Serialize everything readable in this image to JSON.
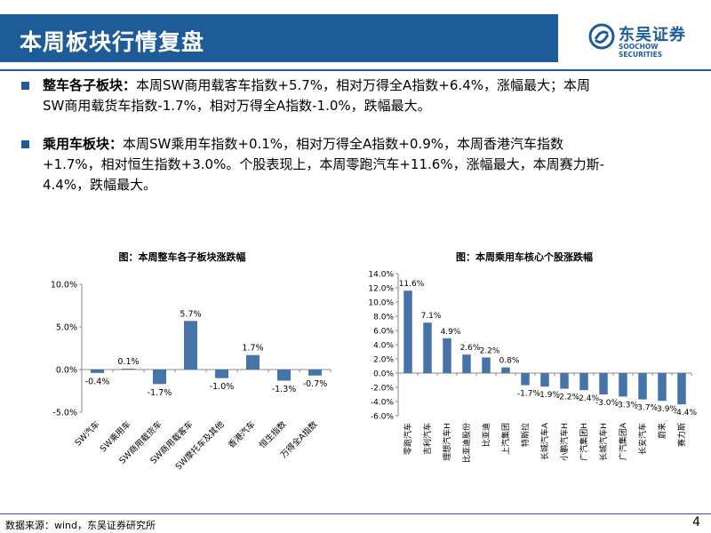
{
  "header": {
    "title": "本周板块行情复盘",
    "logo_cn": "东吴证券",
    "logo_en": "SOOCHOW SECURITIES"
  },
  "bullets": [
    {
      "heading": "整车各子板块：",
      "line1": "本周SW商用载客车指数+5.7%，相对万得全A指数+6.4%，涨幅最大；本周",
      "line2": "SW商用载货车指数-1.7%，相对万得全A指数-1.0%，跌幅最大。"
    },
    {
      "heading": "乘用车板块：",
      "line1": "本周SW乘用车指数+0.1%，相对万得全A指数+0.9%，本周香港汽车指数",
      "line2": "+1.7%，相对恒生指数+3.0%。个股表现上，本周零跑汽车+11.6%，涨幅最大，本周赛力斯-",
      "line3": "4.4%，跌幅最大。"
    }
  ],
  "colors": {
    "accent": "#1e5c99",
    "bar": "#4673a8"
  },
  "chart_data": [
    {
      "type": "bar",
      "title": "图：本周整车各子板块涨跌幅",
      "categories": [
        "SW汽车",
        "SW乘用车",
        "SW商用载货车",
        "SW商用载客车",
        "SW摩托车及其他",
        "香港汽车",
        "恒生指数",
        "万得全A指数"
      ],
      "values": [
        -0.4,
        0.1,
        -1.7,
        5.7,
        -1.0,
        1.7,
        -1.3,
        -0.7
      ],
      "value_labels": [
        "-0.4%",
        "0.1%",
        "-1.7%",
        "5.7%",
        "-1.0%",
        "1.7%",
        "-1.3%",
        "-0.7%"
      ],
      "ylim": [
        -5.0,
        10.0
      ],
      "yticks": [
        -5.0,
        0.0,
        5.0,
        10.0
      ],
      "ytick_labels": [
        "-5.0%",
        "0.0%",
        "5.0%",
        "10.0%"
      ]
    },
    {
      "type": "bar",
      "title": "图：本周乘用车核心个股涨跌幅",
      "categories": [
        "零跑汽车",
        "吉利汽车",
        "理想汽车H",
        "比亚迪股份",
        "比亚迪",
        "上汽集团",
        "特斯拉",
        "长城汽车A",
        "小鹏汽车H",
        "广汽集团H",
        "长城汽车H",
        "广汽集团A",
        "长安汽车",
        "蔚来",
        "赛力斯"
      ],
      "values": [
        11.6,
        7.1,
        4.9,
        2.6,
        2.2,
        0.8,
        -1.7,
        -1.9,
        -2.2,
        -2.4,
        -3.0,
        -3.3,
        -3.7,
        -3.9,
        -4.4
      ],
      "value_labels": [
        "11.6%",
        "7.1%",
        "4.9%",
        "2.6%",
        "2.2%",
        "0.8%",
        "-1.7%",
        "-1.9%",
        "-2.2%",
        "-2.4%",
        "-3.0%",
        "-3.3%",
        "-3.7%",
        "-3.9%",
        "-4.4%"
      ],
      "ylim": [
        -6.0,
        14.0
      ],
      "yticks": [
        -6.0,
        -4.0,
        -2.0,
        0.0,
        2.0,
        4.0,
        6.0,
        8.0,
        10.0,
        12.0,
        14.0
      ],
      "ytick_labels": [
        "-6.0%",
        "-4.0%",
        "-2.0%",
        "0.0%",
        "2.0%",
        "4.0%",
        "6.0%",
        "8.0%",
        "10.0%",
        "12.0%",
        "14.0%"
      ]
    }
  ],
  "footer": {
    "source": "数据来源：wind，东吴证券研究所",
    "page": "4"
  }
}
